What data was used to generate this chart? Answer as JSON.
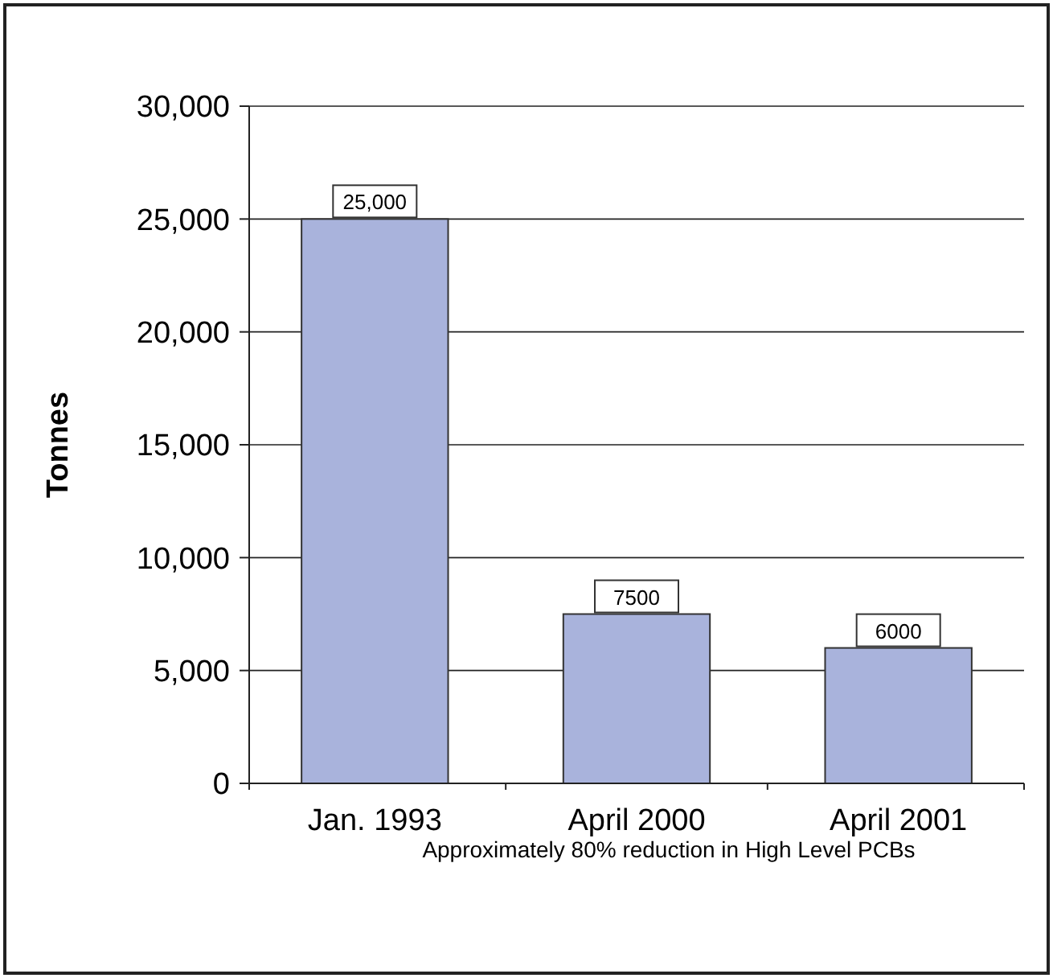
{
  "chart_data": {
    "type": "bar",
    "ylabel": "Tonnes",
    "categories": [
      "Jan. 1993",
      "April 2000",
      "April 2001"
    ],
    "values": [
      25000,
      7500,
      6000
    ],
    "value_labels": [
      "25,000",
      "7500",
      "6000"
    ],
    "color": "#a9b3dc",
    "ylim": [
      0,
      30000
    ],
    "yticks": [
      0,
      {
        "value": 5000,
        "label": "5,000"
      },
      {
        "value": 10000,
        "label": "10,000"
      },
      {
        "value": 15000,
        "label": "15,000"
      },
      {
        "value": 20000,
        "label": "20,000"
      },
      {
        "value": 25000,
        "label": "25,000"
      },
      {
        "value": 30000,
        "label": "30,000"
      }
    ],
    "grid": "y",
    "annotations": [
      "Approximately 80% reduction in High Level PCBs"
    ]
  }
}
